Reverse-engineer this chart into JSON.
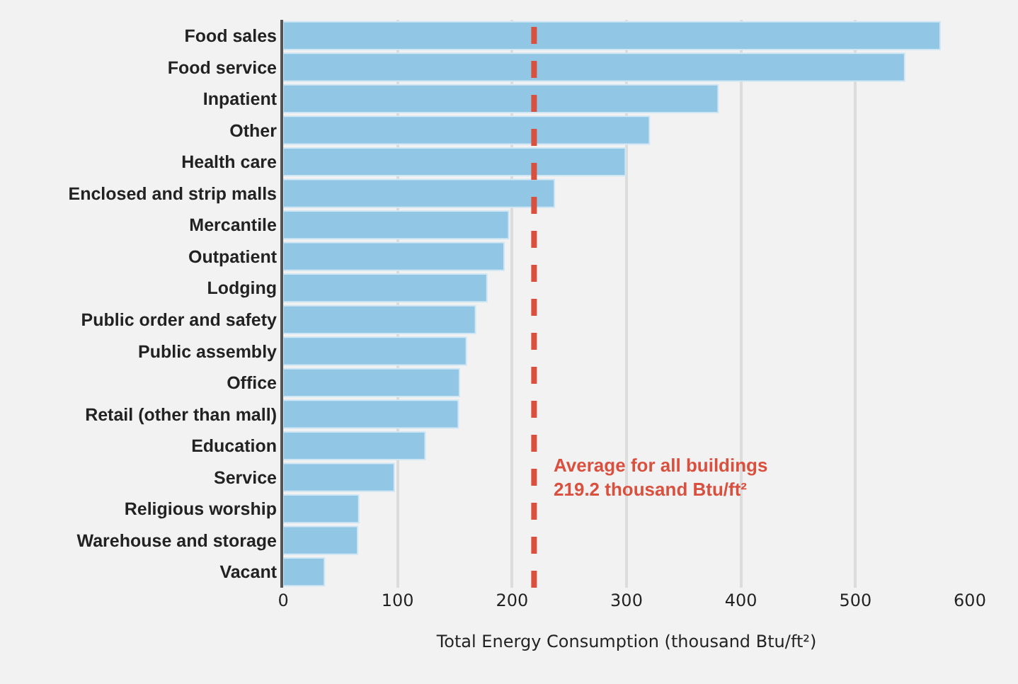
{
  "chart_data": {
    "type": "bar",
    "orientation": "horizontal",
    "xlabel": "Total Energy Consumption (thousand Btu/ft²)",
    "categories": [
      "Food sales",
      "Food service",
      "Inpatient",
      "Other",
      "Health care",
      "Enclosed and strip malls",
      "Mercantile",
      "Outpatient",
      "Lodging",
      "Public order and safety",
      "Public assembly",
      "Office",
      "Retail (other than mall)",
      "Education",
      "Service",
      "Religious worship",
      "Warehouse and storage",
      "Vacant"
    ],
    "values": [
      574,
      543,
      380,
      320,
      299,
      237,
      197,
      193,
      178,
      168,
      160,
      154,
      153,
      124,
      97,
      66,
      65,
      36
    ],
    "color": "#92c6e5",
    "xlim": [
      0,
      600
    ],
    "xticks": [
      0,
      100,
      200,
      300,
      400,
      500,
      600
    ],
    "grid": "x",
    "ref_lines": [
      {
        "axis": "x",
        "value": 219.2,
        "label": "Average for all buildings\n219.2 thousand Btu/ft²",
        "color": "#d9503f",
        "line_style": "dashed"
      }
    ]
  }
}
